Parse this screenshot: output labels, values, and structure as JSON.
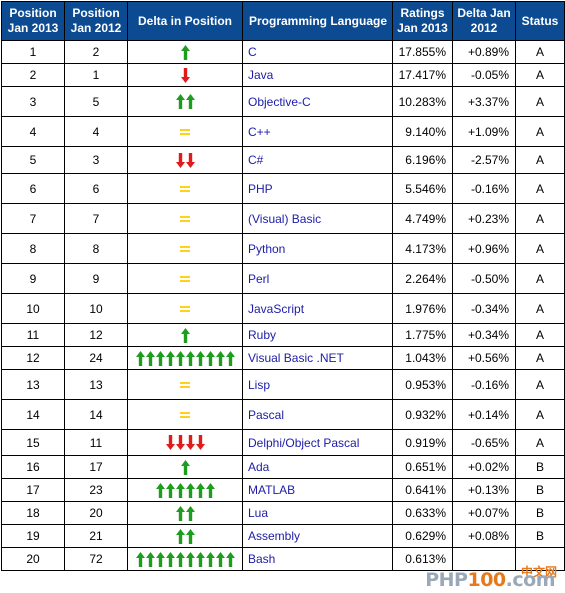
{
  "headers": {
    "pos2013": "Position Jan 2013",
    "pos2012": "Position Jan 2012",
    "delta_pos": "Delta in Position",
    "language": "Programming Language",
    "ratings": "Ratings Jan 2013",
    "delta": "Delta Jan 2012",
    "status": "Status"
  },
  "colors": {
    "header_bg": "#0c4a92",
    "up": "#1e9c1e",
    "down": "#e01b1b",
    "same": "#ffd21a",
    "link": "#1c1ca8"
  },
  "rows": [
    {
      "p13": "1",
      "p12": "2",
      "change": {
        "dir": "up",
        "count": 1
      },
      "lang": "C",
      "rating": "17.855%",
      "delta": "+0.89%",
      "status": "A"
    },
    {
      "p13": "2",
      "p12": "1",
      "change": {
        "dir": "down",
        "count": 1
      },
      "lang": "Java",
      "rating": "17.417%",
      "delta": "-0.05%",
      "status": "A"
    },
    {
      "p13": "3",
      "p12": "5",
      "change": {
        "dir": "up",
        "count": 2
      },
      "lang": "Objective-C",
      "rating": "10.283%",
      "delta": "+3.37%",
      "status": "A"
    },
    {
      "p13": "4",
      "p12": "4",
      "change": {
        "dir": "same",
        "count": 1
      },
      "lang": "C++",
      "rating": "9.140%",
      "delta": "+1.09%",
      "status": "A"
    },
    {
      "p13": "5",
      "p12": "3",
      "change": {
        "dir": "down",
        "count": 2
      },
      "lang": "C#",
      "rating": "6.196%",
      "delta": "-2.57%",
      "status": "A"
    },
    {
      "p13": "6",
      "p12": "6",
      "change": {
        "dir": "same",
        "count": 1
      },
      "lang": "PHP",
      "rating": "5.546%",
      "delta": "-0.16%",
      "status": "A"
    },
    {
      "p13": "7",
      "p12": "7",
      "change": {
        "dir": "same",
        "count": 1
      },
      "lang": "(Visual) Basic",
      "rating": "4.749%",
      "delta": "+0.23%",
      "status": "A"
    },
    {
      "p13": "8",
      "p12": "8",
      "change": {
        "dir": "same",
        "count": 1
      },
      "lang": "Python",
      "rating": "4.173%",
      "delta": "+0.96%",
      "status": "A"
    },
    {
      "p13": "9",
      "p12": "9",
      "change": {
        "dir": "same",
        "count": 1
      },
      "lang": "Perl",
      "rating": "2.264%",
      "delta": "-0.50%",
      "status": "A"
    },
    {
      "p13": "10",
      "p12": "10",
      "change": {
        "dir": "same",
        "count": 1
      },
      "lang": "JavaScript",
      "rating": "1.976%",
      "delta": "-0.34%",
      "status": "A"
    },
    {
      "p13": "11",
      "p12": "12",
      "change": {
        "dir": "up",
        "count": 1
      },
      "lang": "Ruby",
      "rating": "1.775%",
      "delta": "+0.34%",
      "status": "A"
    },
    {
      "p13": "12",
      "p12": "24",
      "change": {
        "dir": "up",
        "count": 10
      },
      "lang": "Visual Basic .NET",
      "rating": "1.043%",
      "delta": "+0.56%",
      "status": "A"
    },
    {
      "p13": "13",
      "p12": "13",
      "change": {
        "dir": "same",
        "count": 1
      },
      "lang": "Lisp",
      "rating": "0.953%",
      "delta": "-0.16%",
      "status": "A"
    },
    {
      "p13": "14",
      "p12": "14",
      "change": {
        "dir": "same",
        "count": 1
      },
      "lang": "Pascal",
      "rating": "0.932%",
      "delta": "+0.14%",
      "status": "A"
    },
    {
      "p13": "15",
      "p12": "11",
      "change": {
        "dir": "down",
        "count": 4
      },
      "lang": "Delphi/Object Pascal",
      "rating": "0.919%",
      "delta": "-0.65%",
      "status": "A"
    },
    {
      "p13": "16",
      "p12": "17",
      "change": {
        "dir": "up",
        "count": 1
      },
      "lang": "Ada",
      "rating": "0.651%",
      "delta": "+0.02%",
      "status": "B"
    },
    {
      "p13": "17",
      "p12": "23",
      "change": {
        "dir": "up",
        "count": 6
      },
      "lang": "MATLAB",
      "rating": "0.641%",
      "delta": "+0.13%",
      "status": "B"
    },
    {
      "p13": "18",
      "p12": "20",
      "change": {
        "dir": "up",
        "count": 2
      },
      "lang": "Lua",
      "rating": "0.633%",
      "delta": "+0.07%",
      "status": "B"
    },
    {
      "p13": "19",
      "p12": "21",
      "change": {
        "dir": "up",
        "count": 2
      },
      "lang": "Assembly",
      "rating": "0.629%",
      "delta": "+0.08%",
      "status": "B"
    },
    {
      "p13": "20",
      "p12": "72",
      "change": {
        "dir": "up",
        "count": 10
      },
      "lang": "Bash",
      "rating": "0.613%",
      "delta": "",
      "status": ""
    }
  ],
  "watermark": {
    "top": "中文网",
    "main_a": "PHP",
    "main_b": "100",
    "main_c": ".com"
  }
}
